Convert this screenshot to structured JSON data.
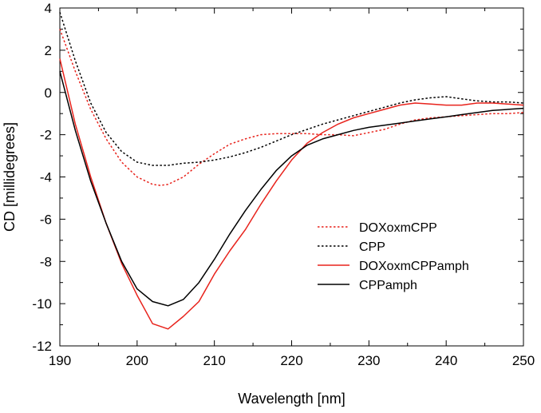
{
  "chart_data": {
    "type": "line",
    "title": "",
    "xlabel": "Wavelength [nm]",
    "ylabel": "CD [millidegrees]",
    "xlim": [
      190,
      250
    ],
    "ylim": [
      -12,
      4
    ],
    "xticks": [
      190,
      200,
      210,
      220,
      230,
      240,
      250
    ],
    "yticks": [
      -12,
      -10,
      -8,
      -6,
      -4,
      -2,
      0,
      2,
      4
    ],
    "xtick_labels": [
      "190",
      "200",
      "210",
      "220",
      "230",
      "240",
      "250"
    ],
    "ytick_labels": [
      "-12",
      "-10",
      "-8",
      "-6",
      "-4",
      "-2",
      "0",
      "2",
      "4"
    ],
    "grid": false,
    "legend_position": "center-right",
    "series": [
      {
        "name": "DOXoxmCPP",
        "color": "#e8231c",
        "style": "dotted",
        "x": [
          190,
          192,
          194,
          196,
          198,
          200,
          202,
          203,
          204,
          206,
          208,
          210,
          212,
          214,
          216,
          218,
          220,
          222,
          224,
          226,
          228,
          230,
          232,
          234,
          236,
          238,
          240,
          242,
          244,
          246,
          248,
          250
        ],
        "y": [
          3.0,
          1.0,
          -0.8,
          -2.2,
          -3.3,
          -4.0,
          -4.35,
          -4.4,
          -4.35,
          -4.0,
          -3.4,
          -2.9,
          -2.45,
          -2.2,
          -2.0,
          -1.95,
          -1.95,
          -1.95,
          -2.0,
          -2.0,
          -2.05,
          -1.9,
          -1.75,
          -1.5,
          -1.3,
          -1.2,
          -1.15,
          -1.1,
          -1.05,
          -1.0,
          -1.0,
          -0.95
        ]
      },
      {
        "name": "CPP",
        "color": "#000000",
        "style": "dotted",
        "x": [
          190,
          192,
          194,
          196,
          198,
          200,
          202,
          204,
          206,
          208,
          210,
          212,
          214,
          216,
          218,
          220,
          222,
          224,
          226,
          228,
          230,
          232,
          234,
          236,
          238,
          240,
          242,
          244,
          246,
          248,
          250
        ],
        "y": [
          3.8,
          1.5,
          -0.5,
          -1.9,
          -2.8,
          -3.3,
          -3.45,
          -3.45,
          -3.35,
          -3.3,
          -3.2,
          -3.05,
          -2.85,
          -2.6,
          -2.3,
          -2.0,
          -1.75,
          -1.5,
          -1.3,
          -1.1,
          -0.9,
          -0.7,
          -0.5,
          -0.35,
          -0.25,
          -0.2,
          -0.3,
          -0.4,
          -0.45,
          -0.45,
          -0.5
        ]
      },
      {
        "name": "DOXoxmCPPamph",
        "color": "#e8231c",
        "style": "solid",
        "x": [
          190,
          192,
          194,
          196,
          198,
          200,
          202,
          204,
          206,
          208,
          210,
          212,
          214,
          216,
          218,
          220,
          222,
          224,
          226,
          228,
          230,
          232,
          234,
          236,
          238,
          240,
          242,
          244,
          246,
          248,
          250
        ],
        "y": [
          1.6,
          -1.5,
          -4.0,
          -6.2,
          -8.1,
          -9.6,
          -10.95,
          -11.2,
          -10.6,
          -9.9,
          -8.6,
          -7.5,
          -6.5,
          -5.3,
          -4.2,
          -3.2,
          -2.4,
          -1.9,
          -1.5,
          -1.2,
          -1.0,
          -0.8,
          -0.6,
          -0.5,
          -0.55,
          -0.6,
          -0.6,
          -0.5,
          -0.5,
          -0.55,
          -0.6
        ]
      },
      {
        "name": "CPPamph",
        "color": "#000000",
        "style": "solid",
        "x": [
          190,
          192,
          194,
          196,
          198,
          200,
          202,
          204,
          206,
          208,
          210,
          212,
          214,
          216,
          218,
          220,
          222,
          224,
          226,
          228,
          230,
          232,
          234,
          236,
          238,
          240,
          242,
          244,
          246,
          248,
          250
        ],
        "y": [
          1.0,
          -1.8,
          -4.2,
          -6.2,
          -8.0,
          -9.3,
          -9.9,
          -10.1,
          -9.8,
          -9.0,
          -7.9,
          -6.7,
          -5.6,
          -4.6,
          -3.7,
          -3.0,
          -2.5,
          -2.2,
          -2.0,
          -1.8,
          -1.65,
          -1.55,
          -1.45,
          -1.35,
          -1.25,
          -1.15,
          -1.05,
          -0.95,
          -0.85,
          -0.8,
          -0.75
        ]
      }
    ]
  }
}
